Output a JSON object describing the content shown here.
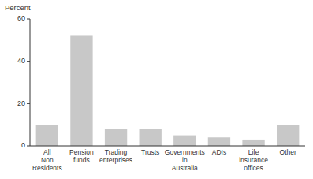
{
  "chart_data": {
    "type": "bar",
    "categories": [
      "All\nNon\nResidents",
      "Pension\nfunds",
      "Trading\nenterprises",
      "Trusts",
      "Governments\nin\nAustralia",
      "ADIs",
      "Life\ninsurance\noffices",
      "Other"
    ],
    "values": [
      10,
      52,
      8,
      8,
      5,
      4,
      3,
      10
    ],
    "color": "#c8c8c8",
    "ylabel": "Percent",
    "ylim": [
      0,
      60
    ],
    "yticks": [
      0,
      20,
      40,
      60
    ],
    "grid": false
  }
}
